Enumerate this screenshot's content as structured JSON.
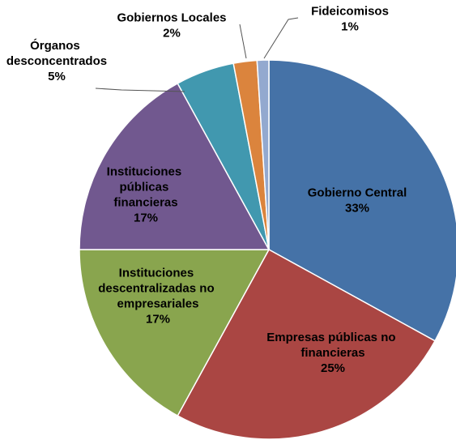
{
  "chart_data": {
    "type": "pie",
    "categories": [
      "Gobierno Central",
      "Empresas públicas no financieras",
      "Instituciones descentralizadas no empresariales",
      "Instituciones públicas financieras",
      "Órganos desconcentrados",
      "Gobiernos Locales",
      "Fideicomisos"
    ],
    "values": [
      33,
      25,
      17,
      17,
      5,
      2,
      1
    ],
    "value_labels": [
      "33%",
      "25%",
      "17%",
      "17%",
      "5%",
      "2%",
      "1%"
    ],
    "colors": [
      "#4572a7",
      "#aa4643",
      "#89a54e",
      "#71588f",
      "#4198af",
      "#db843d",
      "#93a9cf"
    ]
  }
}
